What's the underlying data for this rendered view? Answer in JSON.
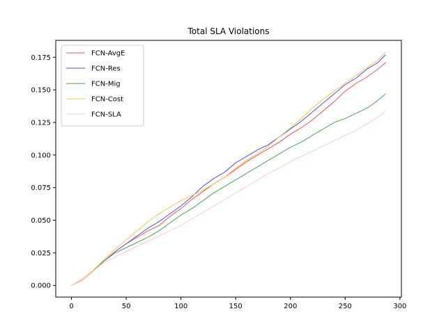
{
  "chart_data": {
    "type": "line",
    "title": "Total SLA Violations",
    "xlabel": "",
    "ylabel": "",
    "xlim": [
      -14.35,
      301.35
    ],
    "ylim": [
      -0.00895,
      0.18795
    ],
    "x_ticks": [
      0,
      50,
      100,
      150,
      200,
      250,
      300
    ],
    "x_tick_labels": [
      "0",
      "50",
      "100",
      "150",
      "200",
      "250",
      "300"
    ],
    "y_ticks": [
      0.0,
      0.025,
      0.05,
      0.075,
      0.1,
      0.125,
      0.15,
      0.175
    ],
    "y_tick_labels": [
      "0.000",
      "0.025",
      "0.050",
      "0.075",
      "0.100",
      "0.125",
      "0.150",
      "0.175"
    ],
    "grid": false,
    "legend_position": "upper-left",
    "x": [
      0,
      10,
      20,
      30,
      40,
      50,
      60,
      70,
      80,
      90,
      100,
      110,
      120,
      130,
      140,
      150,
      160,
      170,
      180,
      190,
      200,
      210,
      220,
      230,
      240,
      250,
      260,
      270,
      280,
      287
    ],
    "series": [
      {
        "name": "FCN-AvgE",
        "color": "#ff4d4d",
        "values": [
          0.0,
          0.004,
          0.011,
          0.019,
          0.026,
          0.032,
          0.037,
          0.042,
          0.046,
          0.053,
          0.059,
          0.066,
          0.072,
          0.078,
          0.083,
          0.089,
          0.095,
          0.1,
          0.105,
          0.11,
          0.116,
          0.121,
          0.127,
          0.134,
          0.141,
          0.149,
          0.155,
          0.16,
          0.166,
          0.171
        ]
      },
      {
        "name": "FCN-Res",
        "color": "#4d4dff",
        "values": [
          0.0,
          0.004,
          0.011,
          0.019,
          0.026,
          0.032,
          0.038,
          0.044,
          0.049,
          0.055,
          0.061,
          0.068,
          0.076,
          0.082,
          0.087,
          0.094,
          0.099,
          0.104,
          0.108,
          0.114,
          0.12,
          0.126,
          0.133,
          0.14,
          0.147,
          0.154,
          0.159,
          0.166,
          0.171,
          0.177
        ]
      },
      {
        "name": "FCN-Mig",
        "color": "#4da64d",
        "values": [
          0.0,
          0.004,
          0.011,
          0.019,
          0.025,
          0.029,
          0.033,
          0.037,
          0.042,
          0.048,
          0.054,
          0.059,
          0.065,
          0.071,
          0.076,
          0.081,
          0.086,
          0.091,
          0.096,
          0.101,
          0.106,
          0.11,
          0.115,
          0.12,
          0.125,
          0.128,
          0.132,
          0.136,
          0.142,
          0.147
        ]
      },
      {
        "name": "FCN-Cost",
        "color": "#ffc04d",
        "values": [
          0.0,
          0.005,
          0.012,
          0.02,
          0.028,
          0.035,
          0.042,
          0.049,
          0.055,
          0.06,
          0.065,
          0.069,
          0.073,
          0.078,
          0.083,
          0.09,
          0.096,
          0.101,
          0.107,
          0.114,
          0.121,
          0.128,
          0.136,
          0.143,
          0.149,
          0.155,
          0.161,
          0.167,
          0.173,
          0.179
        ]
      },
      {
        "name": "FCN-SLA",
        "color": "#ffc8d2",
        "values": [
          0.0,
          0.004,
          0.011,
          0.018,
          0.022,
          0.026,
          0.03,
          0.034,
          0.038,
          0.042,
          0.046,
          0.051,
          0.056,
          0.061,
          0.066,
          0.071,
          0.076,
          0.081,
          0.086,
          0.09,
          0.095,
          0.099,
          0.103,
          0.107,
          0.111,
          0.115,
          0.119,
          0.124,
          0.129,
          0.134
        ]
      }
    ]
  }
}
